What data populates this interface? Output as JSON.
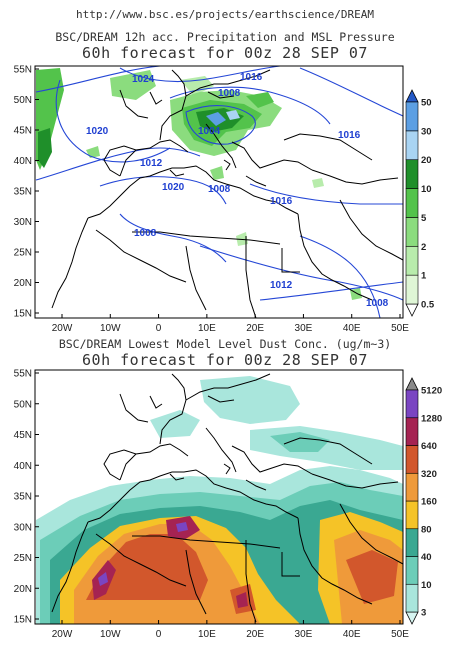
{
  "url": "http://www.bsc.es/projects/earthscience/DREAM",
  "panels": [
    {
      "title": "BSC/DREAM 12h acc. Precipitation and MSL Pressure",
      "subtitle": "60h forecast for 00z 28 SEP 07",
      "colorbar": {
        "labels": [
          "0.5",
          "1",
          "2",
          "5",
          "10",
          "20",
          "30",
          "50"
        ],
        "colors": [
          "#dff6d6",
          "#b8ecac",
          "#8bdc7e",
          "#53c34b",
          "#1f8f2a",
          "#a9d4f3",
          "#5c9fe3",
          "#2459c6"
        ]
      },
      "isobars": [
        "1024",
        "1016",
        "1008",
        "1004",
        "1020",
        "1016",
        "1012",
        "1008",
        "1008",
        "1016",
        "1012",
        "1020",
        "1008"
      ]
    },
    {
      "title": "BSC/DREAM Lowest Model Level Dust Conc. (ug/m~3)",
      "subtitle": "60h forecast for 00z 28 SEP 07",
      "colorbar": {
        "labels": [
          "3",
          "10",
          "40",
          "80",
          "160",
          "320",
          "640",
          "1280",
          "5120"
        ],
        "colors": [
          "#d6f5f1",
          "#a9e6dc",
          "#6ccdb8",
          "#3aa892",
          "#f5c327",
          "#ef9a3a",
          "#d2572c",
          "#a52352",
          "#7a45c2",
          "#8a8a8a"
        ]
      }
    }
  ],
  "axes": {
    "lat_labels": [
      "15N",
      "20N",
      "25N",
      "30N",
      "35N",
      "40N",
      "45N",
      "50N",
      "55N"
    ],
    "lon_labels": [
      "20W",
      "10W",
      "0",
      "10E",
      "20E",
      "30E",
      "40E",
      "50E"
    ]
  }
}
